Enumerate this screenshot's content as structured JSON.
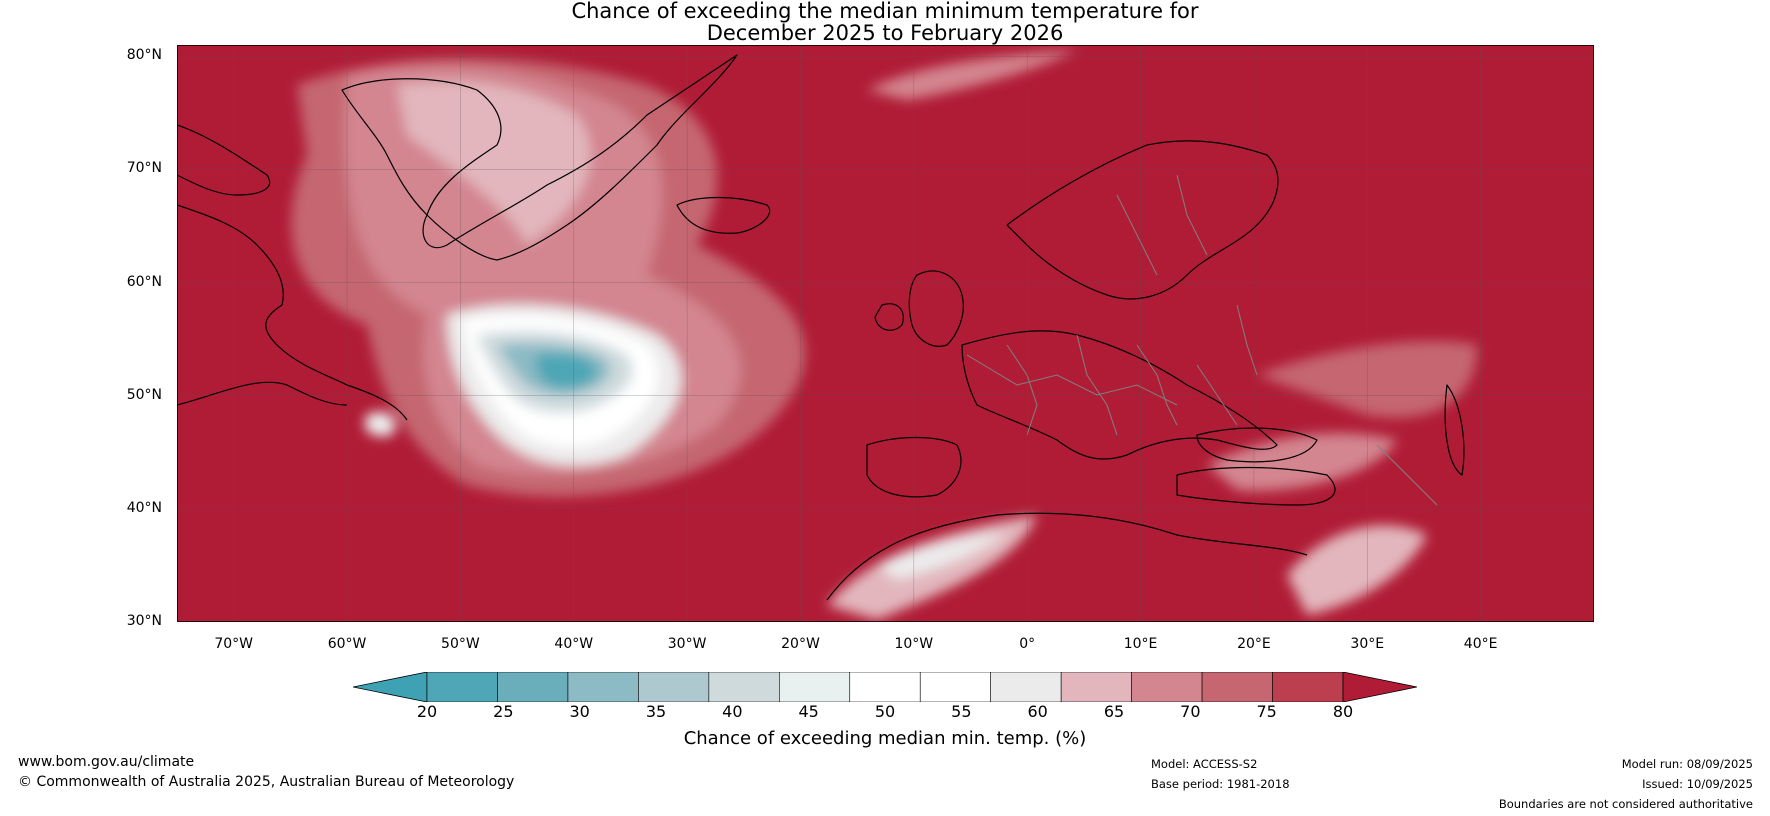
{
  "title": {
    "line1": "Chance of exceeding the median minimum temperature for",
    "line2": "December 2025 to February 2026"
  },
  "map": {
    "lat_labels": [
      "80°N",
      "70°N",
      "60°N",
      "50°N",
      "40°N",
      "30°N"
    ],
    "lon_labels": [
      "70°W",
      "60°W",
      "50°W",
      "40°W",
      "30°W",
      "20°W",
      "10°W",
      "0°",
      "10°E",
      "20°E",
      "30°E",
      "40°E"
    ],
    "lon_values": [
      -70,
      -60,
      -50,
      -40,
      -30,
      -20,
      -10,
      0,
      10,
      20,
      30,
      40
    ],
    "lat_values": [
      80,
      70,
      60,
      50,
      40,
      30
    ],
    "extent": {
      "lon_min": -75,
      "lon_max": 50,
      "lat_min": 30,
      "lat_max": 81
    },
    "colors": {
      "background_red": "#b01c36",
      "teal_dark": "#3fa2b4",
      "white": "#ffffff",
      "coast": "#000000",
      "borders": "#808080"
    }
  },
  "colorbar": {
    "ticks": [
      "20",
      "25",
      "30",
      "35",
      "40",
      "45",
      "50",
      "55",
      "60",
      "65",
      "70",
      "75",
      "80"
    ],
    "colors": [
      "#4ea6b6",
      "#6aadbb",
      "#8cbac5",
      "#adc8cf",
      "#cfdadd",
      "#e9f0f0",
      "#ffffff",
      "#ffffff",
      "#ecebec",
      "#e2b6bc",
      "#d38590",
      "#c56670",
      "#bb3f4f"
    ],
    "under_color": "#3fa2b4",
    "over_color": "#b01c36",
    "label": "Chance of exceeding median min. temp. (%)"
  },
  "footer": {
    "url": "www.bom.gov.au/climate",
    "copyright": "© Commonwealth of Australia 2025, Australian Bureau of Meteorology",
    "model": "Model: ACCESS-S2",
    "base_period": "Base period: 1981-2018",
    "model_run": "Model run: 08/09/2025",
    "issued": "Issued: 10/09/2025",
    "disclaimer": "Boundaries are not considered authoritative"
  }
}
